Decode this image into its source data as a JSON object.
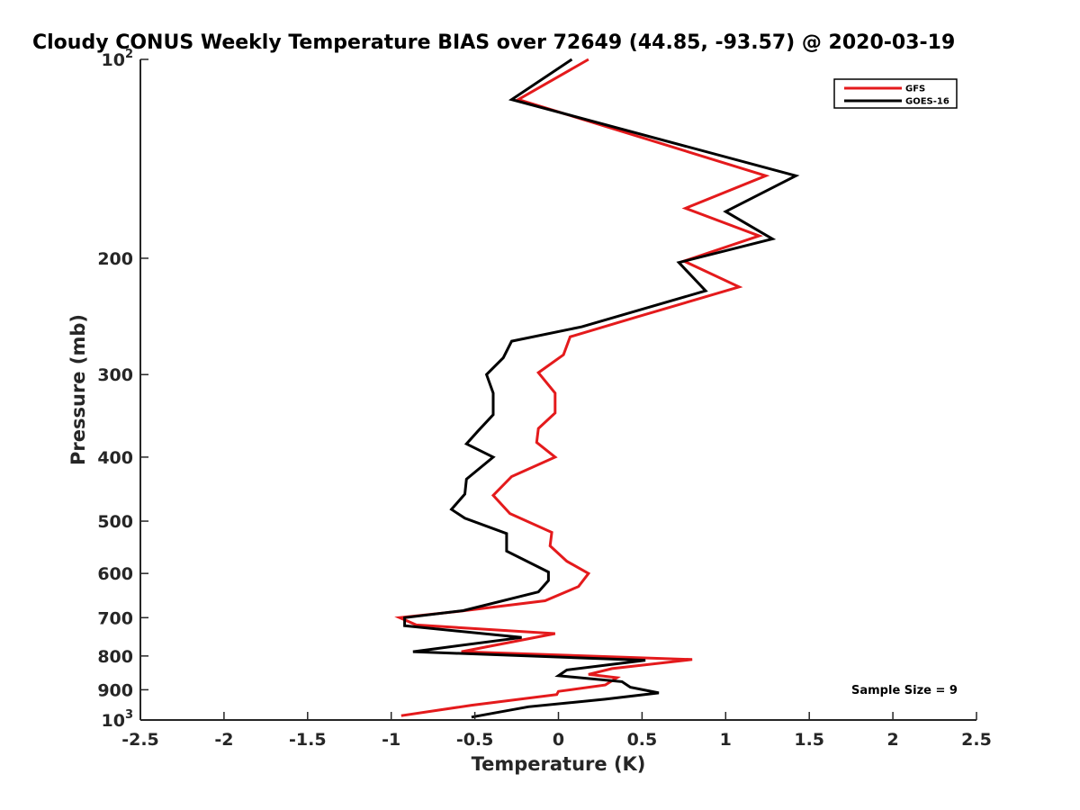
{
  "chart_data": {
    "type": "line",
    "title": "Cloudy CONUS Weekly Temperature BIAS over 72649 (44.85, -93.57) @ 2020-03-19",
    "xlabel": "Temperature (K)",
    "ylabel": "Pressure (mb)",
    "xlim": [
      -2.5,
      2.5
    ],
    "ylim": [
      100,
      1000
    ],
    "yscale": "log",
    "y_reversed": true,
    "grid": false,
    "legend_position": "top-right",
    "x_ticks": [
      "-2.5",
      "-2",
      "-1.5",
      "-1",
      "-0.5",
      "0",
      "0.5",
      "1",
      "1.5",
      "2",
      "2.5"
    ],
    "x_tick_values": [
      -2.5,
      -2,
      -1.5,
      -1,
      -0.5,
      0,
      0.5,
      1,
      1.5,
      2,
      2.5
    ],
    "y_ticks": [
      {
        "value": 100,
        "base": "10",
        "exp": "2"
      },
      {
        "value": 200,
        "label": "200"
      },
      {
        "value": 300,
        "label": "300"
      },
      {
        "value": 400,
        "label": "400"
      },
      {
        "value": 500,
        "label": "500"
      },
      {
        "value": 600,
        "label": "600"
      },
      {
        "value": 700,
        "label": "700"
      },
      {
        "value": 800,
        "label": "800"
      },
      {
        "value": 900,
        "label": "900"
      },
      {
        "value": 1000,
        "base": "10",
        "exp": "3"
      }
    ],
    "annotation": "Sample Size = 9",
    "series": [
      {
        "name": "GFS",
        "color": "#e41a1c",
        "points": [
          [
            0.18,
            100
          ],
          [
            -0.24,
            115
          ],
          [
            1.24,
            150
          ],
          [
            0.76,
            168
          ],
          [
            1.2,
            185
          ],
          [
            0.75,
            202
          ],
          [
            1.08,
            221
          ],
          [
            0.48,
            245
          ],
          [
            0.07,
            263
          ],
          [
            0.03,
            280
          ],
          [
            -0.12,
            298
          ],
          [
            -0.02,
            320
          ],
          [
            -0.02,
            343
          ],
          [
            -0.12,
            362
          ],
          [
            -0.13,
            380
          ],
          [
            -0.02,
            400
          ],
          [
            -0.28,
            428
          ],
          [
            -0.39,
            457
          ],
          [
            -0.29,
            487
          ],
          [
            -0.04,
            520
          ],
          [
            -0.05,
            545
          ],
          [
            0.05,
            575
          ],
          [
            0.18,
            600
          ],
          [
            0.12,
            628
          ],
          [
            -0.08,
            660
          ],
          [
            -0.6,
            685
          ],
          [
            -0.95,
            700
          ],
          [
            -0.85,
            718
          ],
          [
            -0.02,
            740
          ],
          [
            -0.58,
            788
          ],
          [
            0.8,
            810
          ],
          [
            0.32,
            836
          ],
          [
            0.18,
            853
          ],
          [
            0.35,
            863
          ],
          [
            0.28,
            885
          ],
          [
            0.0,
            905
          ],
          [
            -0.01,
            915
          ],
          [
            -0.52,
            950
          ],
          [
            -0.94,
            985
          ]
        ]
      },
      {
        "name": "GOES-16",
        "color": "#000000",
        "points": [
          [
            0.08,
            100
          ],
          [
            -0.28,
            115
          ],
          [
            1.42,
            150
          ],
          [
            1.0,
            170
          ],
          [
            1.28,
            187
          ],
          [
            0.72,
            203
          ],
          [
            0.88,
            224
          ],
          [
            0.14,
            254
          ],
          [
            -0.28,
            267
          ],
          [
            -0.33,
            283
          ],
          [
            -0.43,
            300
          ],
          [
            -0.39,
            320
          ],
          [
            -0.39,
            345
          ],
          [
            -0.48,
            365
          ],
          [
            -0.55,
            382
          ],
          [
            -0.39,
            400
          ],
          [
            -0.55,
            432
          ],
          [
            -0.56,
            455
          ],
          [
            -0.64,
            480
          ],
          [
            -0.56,
            495
          ],
          [
            -0.31,
            522
          ],
          [
            -0.31,
            555
          ],
          [
            -0.06,
            597
          ],
          [
            -0.06,
            615
          ],
          [
            -0.12,
            640
          ],
          [
            -0.57,
            683
          ],
          [
            -0.92,
            700
          ],
          [
            -0.92,
            720
          ],
          [
            -0.22,
            750
          ],
          [
            -0.87,
            788
          ],
          [
            0.52,
            812
          ],
          [
            0.05,
            840
          ],
          [
            0.0,
            857
          ],
          [
            0.38,
            875
          ],
          [
            0.43,
            892
          ],
          [
            0.6,
            910
          ],
          [
            0.28,
            930
          ],
          [
            -0.18,
            955
          ],
          [
            -0.52,
            990
          ]
        ]
      }
    ]
  }
}
